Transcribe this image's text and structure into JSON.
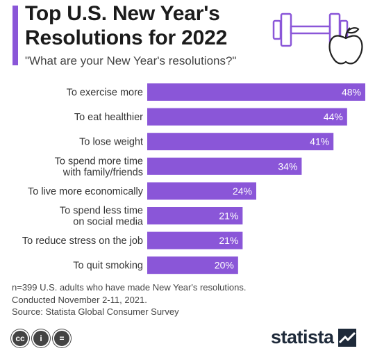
{
  "header": {
    "title": "Top U.S. New Year's Resolutions for 2022",
    "subtitle": "\"What are your New Year's resolutions?\""
  },
  "icons": {
    "illustration": "dumbbell-and-apple-icon",
    "license": [
      "cc-icon",
      "attribution-icon",
      "no-derivatives-icon"
    ]
  },
  "colors": {
    "bar": "#8a56d8",
    "accent": "#8a56d8",
    "label": "#333333",
    "value": "#ffffff"
  },
  "chart_data": {
    "type": "bar",
    "orientation": "horizontal",
    "title": "Top U.S. New Year's Resolutions for 2022",
    "subtitle": "\"What are your New Year's resolutions?\"",
    "xlabel": "",
    "ylabel": "",
    "xlim": [
      0,
      48
    ],
    "grid": false,
    "categories": [
      [
        "To exercise more"
      ],
      [
        "To eat healthier"
      ],
      [
        "To lose weight"
      ],
      [
        "To spend more time",
        "with family/friends"
      ],
      [
        "To live more economically"
      ],
      [
        "To spend less time",
        "on social media"
      ],
      [
        "To reduce stress on the job"
      ],
      [
        "To quit smoking"
      ]
    ],
    "values": [
      48,
      44,
      41,
      34,
      24,
      21,
      21,
      20
    ],
    "value_labels": [
      "48%",
      "44%",
      "41%",
      "34%",
      "24%",
      "21%",
      "21%",
      "20%"
    ]
  },
  "notes": {
    "line1": "n=399 U.S. adults who have made New Year's resolutions.",
    "line2": "Conducted November 2-11, 2021.",
    "source": "Source: Statista Global Consumer Survey"
  },
  "footer": {
    "cc": "cc",
    "by": "i",
    "nd": "=",
    "logo": "statista"
  }
}
